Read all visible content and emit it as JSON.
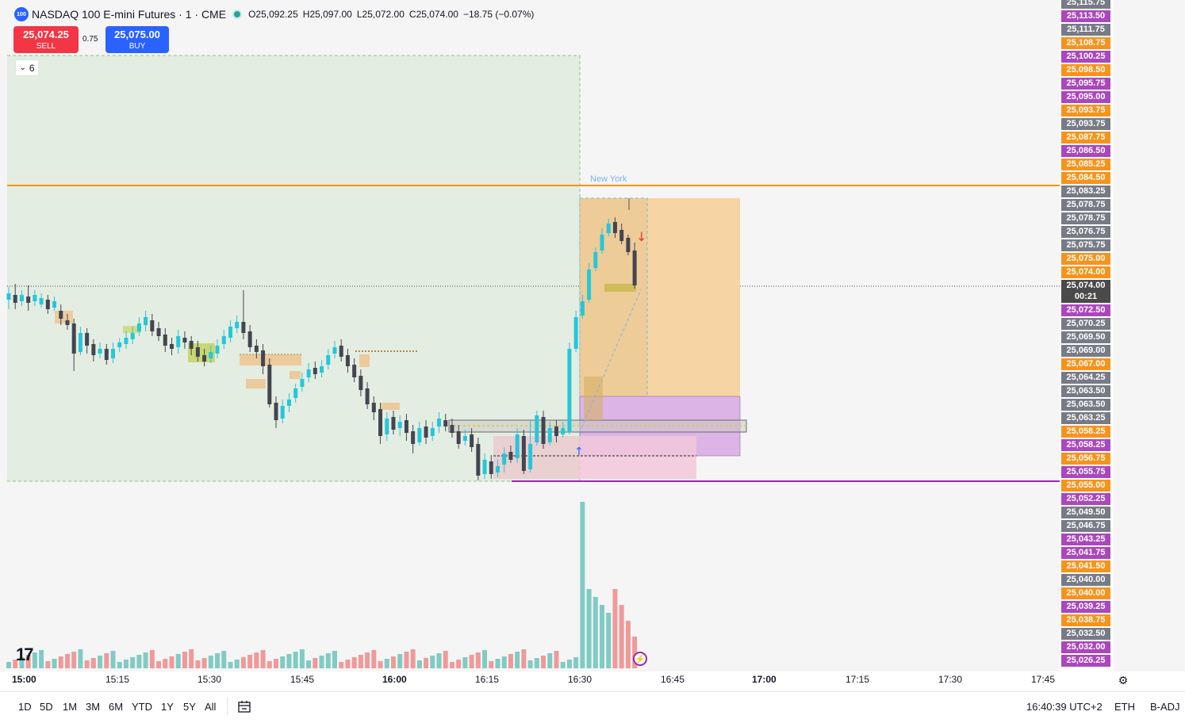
{
  "symbol": {
    "icon_text": "100",
    "title": "NASDAQ 100 E-mini Futures · 1 · CME",
    "open": "O25,092.25",
    "high": "H25,097.00",
    "low": "L25,072.00",
    "close": "C25,074.00",
    "change": "−18.75 (−0.07%)"
  },
  "trade": {
    "sell_price": "25,074.25",
    "sell_label": "SELL",
    "spread": "0.75",
    "buy_price": "25,075.00",
    "buy_label": "BUY"
  },
  "indicators_collapsed_count": "6",
  "session_label": "New York",
  "price_labels": [
    {
      "text": "25,115.75",
      "color": "#787b86"
    },
    {
      "text": "25,113.50",
      "color": "#ab47bc"
    },
    {
      "text": "25,111.75",
      "color": "#787b86"
    },
    {
      "text": "25,108.75",
      "color": "#f7931a"
    },
    {
      "text": "25,100.25",
      "color": "#ab47bc"
    },
    {
      "text": "25,098.50",
      "color": "#f7931a"
    },
    {
      "text": "25,095.75",
      "color": "#ab47bc"
    },
    {
      "text": "25,095.00",
      "color": "#ab47bc"
    },
    {
      "text": "25,093.75",
      "color": "#f7931a"
    },
    {
      "text": "25,093.75",
      "color": "#787b86"
    },
    {
      "text": "25,087.75",
      "color": "#f7931a"
    },
    {
      "text": "25,086.50",
      "color": "#ab47bc"
    },
    {
      "text": "25,085.25",
      "color": "#f7931a"
    },
    {
      "text": "25,084.50",
      "color": "#f7931a"
    },
    {
      "text": "25,083.25",
      "color": "#787b86"
    },
    {
      "text": "25,078.75",
      "color": "#787b86"
    },
    {
      "text": "25,078.75",
      "color": "#787b86"
    },
    {
      "text": "25,076.75",
      "color": "#787b86"
    },
    {
      "text": "25,075.75",
      "color": "#787b86"
    },
    {
      "text": "25,075.00",
      "color": "#f7931a"
    },
    {
      "text": "25,074.00",
      "color": "#f7931a"
    },
    {
      "text": "25,074.00",
      "color": "#4a4a4a"
    },
    {
      "text": "00:21",
      "color": "#4a4a4a"
    },
    {
      "text": "25,072.50",
      "color": "#ab47bc"
    },
    {
      "text": "25,070.25",
      "color": "#787b86"
    },
    {
      "text": "25,069.50",
      "color": "#787b86"
    },
    {
      "text": "25,069.00",
      "color": "#787b86"
    },
    {
      "text": "25,067.00",
      "color": "#f7931a"
    },
    {
      "text": "25,064.25",
      "color": "#787b86"
    },
    {
      "text": "25,063.50",
      "color": "#787b86"
    },
    {
      "text": "25,063.50",
      "color": "#787b86"
    },
    {
      "text": "25,063.25",
      "color": "#787b86"
    },
    {
      "text": "25,058.25",
      "color": "#f7931a"
    },
    {
      "text": "25,058.25",
      "color": "#ab47bc"
    },
    {
      "text": "25,056.75",
      "color": "#f7931a"
    },
    {
      "text": "25,055.75",
      "color": "#ab47bc"
    },
    {
      "text": "25,055.00",
      "color": "#f7931a"
    },
    {
      "text": "25,052.25",
      "color": "#ab47bc"
    },
    {
      "text": "25,049.50",
      "color": "#787b86"
    },
    {
      "text": "25,046.75",
      "color": "#787b86"
    },
    {
      "text": "25,043.25",
      "color": "#ab47bc"
    },
    {
      "text": "25,041.75",
      "color": "#ab47bc"
    },
    {
      "text": "25,041.50",
      "color": "#f7931a"
    },
    {
      "text": "25,040.00",
      "color": "#787b86"
    },
    {
      "text": "25,040.00",
      "color": "#f7931a"
    },
    {
      "text": "25,039.25",
      "color": "#ab47bc"
    },
    {
      "text": "25,038.75",
      "color": "#f7931a"
    },
    {
      "text": "25,032.50",
      "color": "#787b86"
    },
    {
      "text": "25,032.00",
      "color": "#ab47bc"
    },
    {
      "text": "25,026.25",
      "color": "#ab47bc"
    }
  ],
  "time_labels": [
    "15:00",
    "15:15",
    "15:30",
    "15:45",
    "16:00",
    "16:15",
    "16:30",
    "16:45",
    "17:00",
    "17:15",
    "17:30",
    "17:45"
  ],
  "bold_time_labels": [
    "15:00",
    "16:00",
    "17:00"
  ],
  "ranges": [
    "1D",
    "5D",
    "1M",
    "3M",
    "6M",
    "YTD",
    "1Y",
    "5Y",
    "All"
  ],
  "status": {
    "clock": "16:40:39 UTC+2",
    "session": "ETH",
    "adjustment": "B-ADJ"
  },
  "colors": {
    "up": "#26c6da",
    "down": "#434651",
    "vol_up": "#80cbc4",
    "vol_down": "#ef9a9a",
    "orange_line": "#f7931a",
    "purple_line": "#9c27b0"
  },
  "icons": {
    "settings": "gear-icon",
    "compare": "calendar-range-icon",
    "logo": "tradingview-logo",
    "flash": "lightning-icon"
  }
}
